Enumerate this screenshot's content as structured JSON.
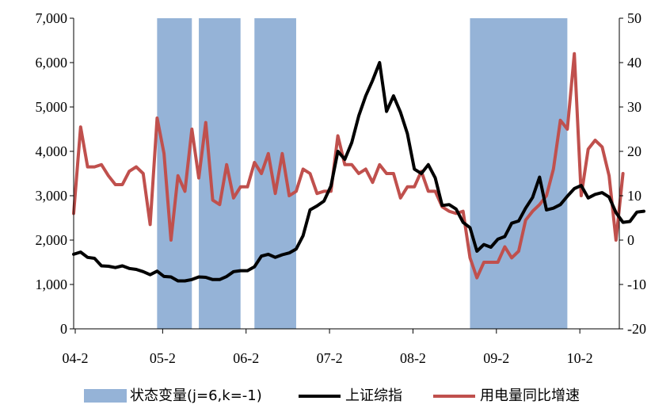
{
  "chart_data": {
    "type": "line",
    "title": "",
    "x_tick_labels": [
      "04-2",
      "05-2",
      "06-2",
      "07-2",
      "08-2",
      "09-2",
      "10-2"
    ],
    "x_start": "2004-02",
    "y_left_ticks": [
      "0",
      "1,000",
      "2,000",
      "3,000",
      "4,000",
      "5,000",
      "6,000",
      "7,000"
    ],
    "y_left_range": [
      0,
      7000
    ],
    "y_right_ticks": [
      "-20",
      "-10",
      "0",
      "10",
      "20",
      "30",
      "40",
      "50"
    ],
    "y_right_range": [
      -20,
      50
    ],
    "colors": {
      "regime": "#95b3d7",
      "index": "#000000",
      "power": "#c0504d"
    },
    "regime_periods": [
      {
        "start": "2005-02",
        "end": "2005-07"
      },
      {
        "start": "2005-08",
        "end": "2006-02"
      },
      {
        "start": "2006-04",
        "end": "2006-10"
      },
      {
        "start": "2008-11",
        "end": "2010-01"
      }
    ],
    "series": [
      {
        "name": "上证综指",
        "axis": "left",
        "start": "2004-02",
        "values": [
          1680,
          1730,
          1610,
          1590,
          1420,
          1410,
          1380,
          1420,
          1360,
          1340,
          1290,
          1220,
          1300,
          1180,
          1170,
          1080,
          1080,
          1110,
          1170,
          1160,
          1110,
          1110,
          1180,
          1290,
          1310,
          1310,
          1400,
          1640,
          1680,
          1610,
          1670,
          1710,
          1800,
          2100,
          2680,
          2770,
          2880,
          3220,
          4000,
          3820,
          4200,
          4800,
          5250,
          5600,
          6000,
          4900,
          5250,
          4880,
          4400,
          3600,
          3500,
          3700,
          3400,
          2780,
          2800,
          2700,
          2400,
          2280,
          1750,
          1900,
          1840,
          2020,
          2080,
          2380,
          2430,
          2720,
          2960,
          3420,
          2680,
          2720,
          2800,
          2990,
          3160,
          3230,
          2950,
          3030,
          3070,
          2970,
          2620,
          2400,
          2420,
          2630,
          2650
        ],
        "legend": "上证综指"
      },
      {
        "name": "用电量同比增速",
        "axis": "right",
        "start": "2004-02",
        "values": [
          6,
          25.5,
          16.5,
          16.5,
          17,
          14.5,
          12.5,
          12.5,
          15.5,
          16.5,
          15,
          3.5,
          27.5,
          19.5,
          0,
          14.5,
          11,
          25,
          14,
          26.5,
          9,
          8,
          17,
          9.5,
          12,
          12,
          17.5,
          15,
          19.5,
          10.5,
          19.5,
          10,
          11,
          16,
          15,
          10.5,
          11,
          11,
          23.5,
          17,
          17,
          15,
          16,
          13,
          17,
          15,
          15,
          9.5,
          12,
          12,
          15.5,
          11,
          11,
          7.5,
          6.5,
          6,
          6.5,
          -4,
          -8.5,
          -5,
          -5,
          -5,
          -1.5,
          -4,
          -2.5,
          4.5,
          6.5,
          8,
          10,
          16,
          27,
          25,
          42,
          10,
          20.5,
          22.5,
          21,
          14.5,
          0,
          15
        ],
        "legend": "用电量同比增速"
      }
    ],
    "legend": [
      {
        "label": "状态变量(j=6,k=-1)",
        "kind": "rect"
      },
      {
        "label": "上证综指",
        "kind": "line"
      },
      {
        "label": "用电量同比增速",
        "kind": "line"
      }
    ],
    "legend_position": "bottom",
    "grid": false
  }
}
